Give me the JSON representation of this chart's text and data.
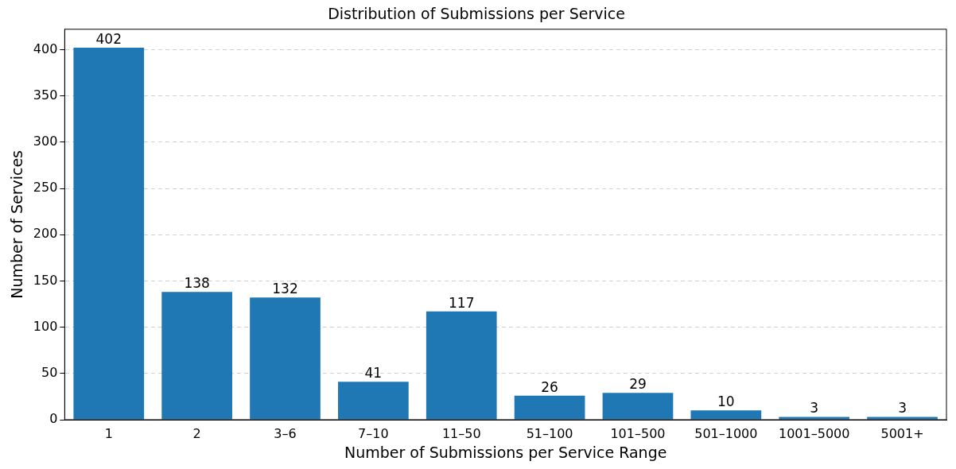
{
  "chart_data": {
    "type": "bar",
    "title": "Distribution of Submissions per Service",
    "xlabel": "Number of Submissions per Service Range",
    "ylabel": "Number of Services",
    "categories": [
      "1",
      "2",
      "3–6",
      "7–10",
      "11–50",
      "51–100",
      "101–500",
      "501–1000",
      "1001–5000",
      "5001+"
    ],
    "values": [
      402,
      138,
      132,
      41,
      117,
      26,
      29,
      10,
      3,
      3
    ],
    "color": "#1f77b4",
    "ylim": [
      0,
      422
    ],
    "yticks": [
      0,
      50,
      100,
      150,
      200,
      250,
      300,
      350,
      400
    ],
    "grid": "y",
    "data_labels": true,
    "legend": false
  }
}
